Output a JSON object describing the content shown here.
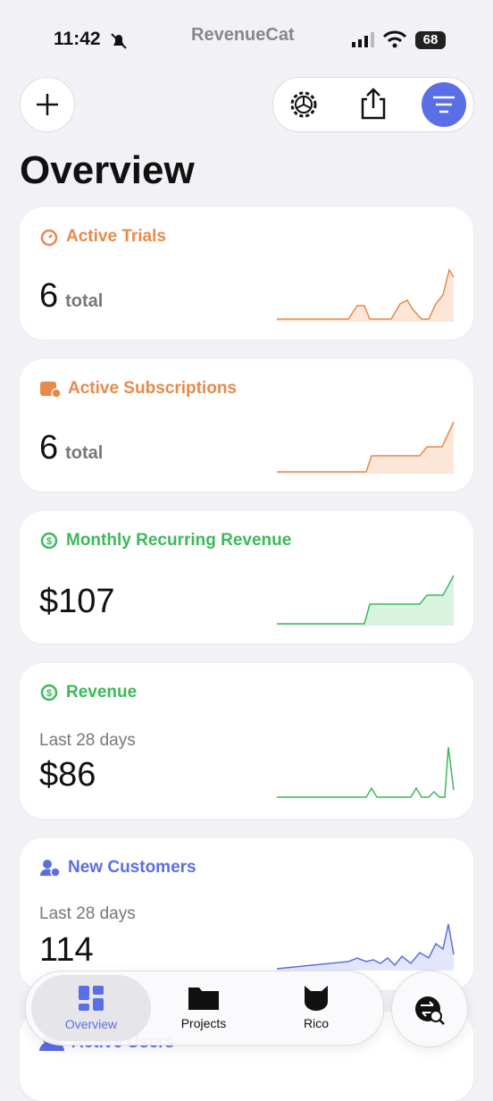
{
  "status_bar": {
    "time": "11:42",
    "battery": "68"
  },
  "header": {
    "logo": "RevenueCat",
    "title": "Overview"
  },
  "cards": [
    {
      "title": "Active Trials",
      "value": "6",
      "unit": "total"
    },
    {
      "title": "Active Subscriptions",
      "value": "6",
      "unit": "total"
    },
    {
      "title": "Monthly Recurring Revenue",
      "value": "$107"
    },
    {
      "title": "Revenue",
      "subtitle": "Last 28 days",
      "value": "$86"
    },
    {
      "title": "New Customers",
      "subtitle": "Last 28 days",
      "value": "114"
    },
    {
      "title": "Active Users"
    }
  ],
  "tab_bar": {
    "tabs": [
      "Overview",
      "Projects",
      "Rico"
    ]
  }
}
